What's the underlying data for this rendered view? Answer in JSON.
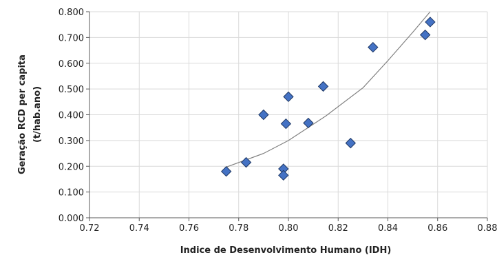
{
  "chart_data": {
    "type": "scatter",
    "xlabel": "Indice de Desenvolvimento Humano (IDH)",
    "ylabel_line1": "Geração RCD per capita",
    "ylabel_line2": "(t/hab.ano)",
    "xlim": [
      0.72,
      0.88
    ],
    "ylim": [
      0.0,
      0.8
    ],
    "x_ticks": [
      "0.72",
      "0.74",
      "0.76",
      "0.78",
      "0.80",
      "0.82",
      "0.84",
      "0.86",
      "0.88"
    ],
    "y_ticks": [
      "0.000",
      "0.100",
      "0.200",
      "0.300",
      "0.400",
      "0.500",
      "0.600",
      "0.700",
      "0.800"
    ],
    "grid": true,
    "marker_color": "#4472C4",
    "marker_edge_color": "#1F3864",
    "trend_color": "#808080",
    "points": [
      {
        "x": 0.775,
        "y": 0.18
      },
      {
        "x": 0.783,
        "y": 0.215
      },
      {
        "x": 0.79,
        "y": 0.4
      },
      {
        "x": 0.798,
        "y": 0.19
      },
      {
        "x": 0.798,
        "y": 0.165
      },
      {
        "x": 0.799,
        "y": 0.365
      },
      {
        "x": 0.8,
        "y": 0.47
      },
      {
        "x": 0.808,
        "y": 0.368
      },
      {
        "x": 0.814,
        "y": 0.51
      },
      {
        "x": 0.825,
        "y": 0.29
      },
      {
        "x": 0.834,
        "y": 0.662
      },
      {
        "x": 0.855,
        "y": 0.71
      },
      {
        "x": 0.857,
        "y": 0.76
      }
    ],
    "trendline": [
      {
        "x": 0.775,
        "y": 0.197
      },
      {
        "x": 0.79,
        "y": 0.25
      },
      {
        "x": 0.8,
        "y": 0.3
      },
      {
        "x": 0.815,
        "y": 0.395
      },
      {
        "x": 0.83,
        "y": 0.505
      },
      {
        "x": 0.84,
        "y": 0.61
      },
      {
        "x": 0.85,
        "y": 0.72
      },
      {
        "x": 0.857,
        "y": 0.8
      }
    ]
  }
}
